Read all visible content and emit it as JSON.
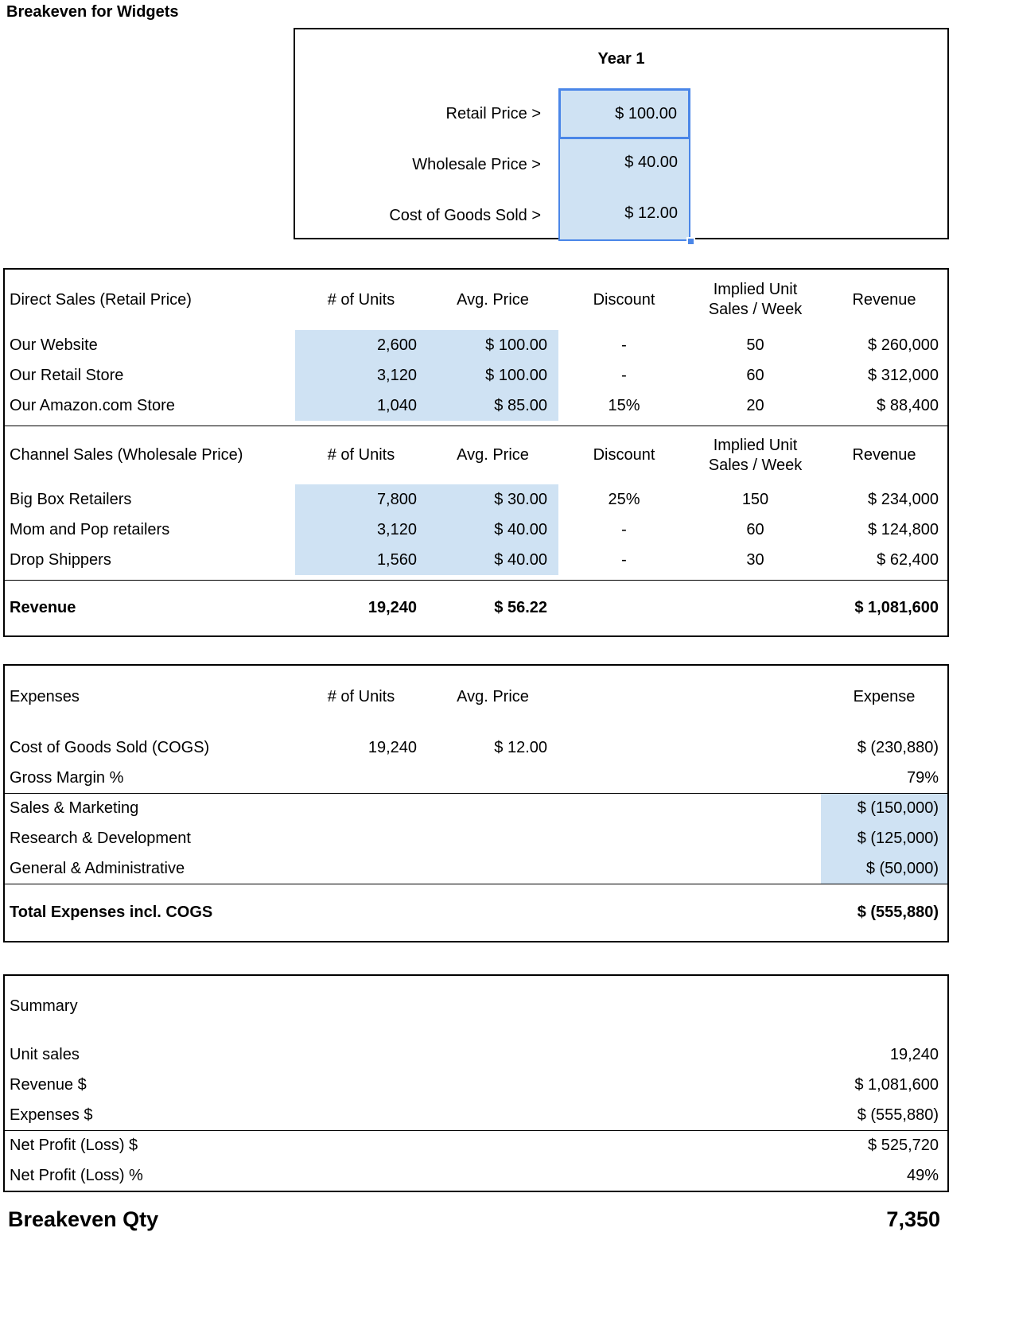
{
  "page": {
    "title": "Breakeven for Widgets"
  },
  "colors": {
    "highlight_fill": "#cfe2f3",
    "selection_border": "#4a86e8"
  },
  "assumptions": {
    "year_header": "Year 1",
    "rows": [
      {
        "label": "Retail Price >",
        "value": "$ 100.00"
      },
      {
        "label": "Wholesale Price >",
        "value": "$ 40.00"
      },
      {
        "label": "Cost of Goods Sold >",
        "value": "$ 12.00"
      }
    ]
  },
  "sales": {
    "headers": {
      "units": "# of Units",
      "price": "Avg. Price",
      "discount": "Discount",
      "implied": "Implied Unit Sales / Week",
      "revenue": "Revenue"
    },
    "direct": {
      "title": "Direct Sales (Retail Price)",
      "rows": [
        {
          "label": "Our Website",
          "units": "2,600",
          "price": "$ 100.00",
          "discount": "-",
          "implied": "50",
          "revenue": "$ 260,000"
        },
        {
          "label": "Our Retail Store",
          "units": "3,120",
          "price": "$ 100.00",
          "discount": "-",
          "implied": "60",
          "revenue": "$ 312,000"
        },
        {
          "label": "Our Amazon.com Store",
          "units": "1,040",
          "price": "$ 85.00",
          "discount": "15%",
          "implied": "20",
          "revenue": "$ 88,400"
        }
      ]
    },
    "channel": {
      "title": "Channel Sales (Wholesale Price)",
      "rows": [
        {
          "label": "Big Box Retailers",
          "units": "7,800",
          "price": "$ 30.00",
          "discount": "25%",
          "implied": "150",
          "revenue": "$ 234,000"
        },
        {
          "label": "Mom and Pop retailers",
          "units": "3,120",
          "price": "$ 40.00",
          "discount": "-",
          "implied": "60",
          "revenue": "$ 124,800"
        },
        {
          "label": "Drop Shippers",
          "units": "1,560",
          "price": "$ 40.00",
          "discount": "-",
          "implied": "30",
          "revenue": "$ 62,400"
        }
      ]
    },
    "total": {
      "label": "Revenue",
      "units": "19,240",
      "price": "$ 56.22",
      "revenue": "$ 1,081,600"
    }
  },
  "expenses": {
    "headers": {
      "label": "Expenses",
      "units": "# of Units",
      "price": "Avg. Price",
      "expense": "Expense"
    },
    "cogs": {
      "label": "Cost of Goods Sold (COGS)",
      "units": "19,240",
      "price": "$ 12.00",
      "expense": "$ (230,880)"
    },
    "gross_margin": {
      "label": "Gross Margin %",
      "value": "79%"
    },
    "opex": [
      {
        "label": "Sales & Marketing",
        "expense": "$ (150,000)"
      },
      {
        "label": "Research & Development",
        "expense": "$ (125,000)"
      },
      {
        "label": "General & Administrative",
        "expense": "$ (50,000)"
      }
    ],
    "total": {
      "label": "Total Expenses incl. COGS",
      "expense": "$ (555,880)"
    }
  },
  "summary": {
    "title": "Summary",
    "rows": [
      {
        "label": "Unit sales",
        "value": "19,240"
      },
      {
        "label": "Revenue $",
        "value": "$ 1,081,600"
      },
      {
        "label": "Expenses $",
        "value": "$ (555,880)"
      }
    ],
    "net": [
      {
        "label": "Net Profit (Loss) $",
        "value": "$ 525,720"
      },
      {
        "label": "Net Profit (Loss) %",
        "value": "49%"
      }
    ]
  },
  "breakeven": {
    "label": "Breakeven Qty",
    "value": "7,350"
  }
}
